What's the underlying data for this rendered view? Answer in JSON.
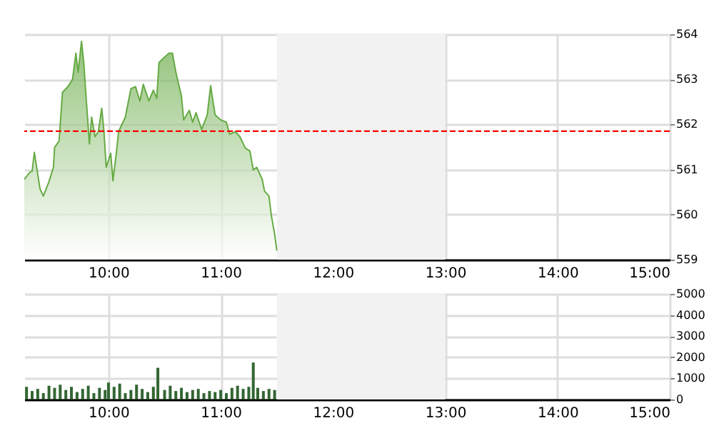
{
  "chart_data": [
    {
      "type": "area",
      "x": [
        9.25,
        9.3,
        9.32,
        9.34,
        9.39,
        9.42,
        9.47,
        9.51,
        9.52,
        9.56,
        9.59,
        9.64,
        9.68,
        9.71,
        9.73,
        9.76,
        9.78,
        9.8,
        9.83,
        9.85,
        9.88,
        9.91,
        9.94,
        9.96,
        9.98,
        10.02,
        10.04,
        10.07,
        10.09,
        10.15,
        10.2,
        10.24,
        10.28,
        10.31,
        10.36,
        10.4,
        10.43,
        10.45,
        10.49,
        10.54,
        10.57,
        10.6,
        10.65,
        10.67,
        10.72,
        10.75,
        10.78,
        10.83,
        10.88,
        10.91,
        10.95,
        11.0,
        11.05,
        11.08,
        11.13,
        11.17,
        11.22,
        11.26,
        11.29,
        11.32,
        11.37,
        11.39,
        11.43,
        11.45,
        11.48,
        11.5
      ],
      "series": [
        {
          "color": "#66aa44",
          "values": [
            560.78,
            560.94,
            560.96,
            561.38,
            560.57,
            560.41,
            560.73,
            561.05,
            561.49,
            561.63,
            562.71,
            562.84,
            563.0,
            563.58,
            563.16,
            563.84,
            563.37,
            562.63,
            561.57,
            562.16,
            561.73,
            561.84,
            562.36,
            561.84,
            561.05,
            561.36,
            560.75,
            561.36,
            561.84,
            562.16,
            562.79,
            562.84,
            562.52,
            562.89,
            562.52,
            562.76,
            562.58,
            563.37,
            563.47,
            563.58,
            563.58,
            563.16,
            562.63,
            562.1,
            562.31,
            562.05,
            562.26,
            561.89,
            562.21,
            562.86,
            562.21,
            562.1,
            562.05,
            561.78,
            561.84,
            561.73,
            561.47,
            561.41,
            560.99,
            561.05,
            560.78,
            560.52,
            560.41,
            559.99,
            559.57,
            559.2
          ]
        }
      ],
      "xlim": [
        9.25,
        15
      ],
      "xticks": [
        {
          "value": 10,
          "label": "10:00"
        },
        {
          "value": 11,
          "label": "11:00"
        },
        {
          "value": 12,
          "label": "12:00"
        },
        {
          "value": 13,
          "label": "13:00"
        },
        {
          "value": 14,
          "label": "14:00"
        },
        {
          "value": 15,
          "label": "15:00"
        }
      ],
      "ylim": [
        559,
        564
      ],
      "yticks": [
        559,
        560,
        561,
        562,
        563,
        564
      ],
      "grid": true,
      "ref_lines": [
        {
          "axis": "y",
          "value": 561.85,
          "color": "#ff0000",
          "line_style": "dashed"
        }
      ],
      "bands": [
        {
          "axis": "x",
          "from": 11.5,
          "to": 13,
          "color": "#f2f2f2"
        }
      ]
    },
    {
      "type": "bar",
      "x": [
        9.27,
        9.32,
        9.37,
        9.42,
        9.47,
        9.52,
        9.57,
        9.62,
        9.67,
        9.72,
        9.77,
        9.82,
        9.87,
        9.92,
        9.97,
        10.0,
        10.05,
        10.1,
        10.15,
        10.2,
        10.25,
        10.3,
        10.35,
        10.4,
        10.44,
        10.5,
        10.55,
        10.6,
        10.65,
        10.7,
        10.75,
        10.8,
        10.85,
        10.9,
        10.95,
        11.0,
        11.05,
        11.1,
        11.15,
        11.2,
        11.25,
        11.29,
        11.33,
        11.38,
        11.43,
        11.48
      ],
      "series": [
        {
          "color": "#336633",
          "values": [
            600,
            400,
            500,
            300,
            650,
            550,
            700,
            450,
            600,
            350,
            500,
            650,
            300,
            550,
            450,
            800,
            600,
            750,
            300,
            450,
            700,
            500,
            350,
            600,
            1500,
            450,
            650,
            400,
            550,
            350,
            450,
            500,
            300,
            400,
            350,
            450,
            300,
            550,
            650,
            500,
            600,
            1750,
            550,
            400,
            500,
            450
          ]
        }
      ],
      "xlim": [
        9.25,
        15
      ],
      "xticks": [
        {
          "value": 10,
          "label": "10:00"
        },
        {
          "value": 11,
          "label": "11:00"
        },
        {
          "value": 12,
          "label": "12:00"
        },
        {
          "value": 13,
          "label": "13:00"
        },
        {
          "value": 14,
          "label": "14:00"
        },
        {
          "value": 15,
          "label": "15:00"
        }
      ],
      "ylim": [
        0,
        5000
      ],
      "yticks": [
        0,
        1000,
        2000,
        3000,
        4000,
        5000
      ],
      "grid": true,
      "bands": [
        {
          "axis": "x",
          "from": 11.5,
          "to": 13,
          "color": "#f2f2f2"
        }
      ]
    }
  ]
}
